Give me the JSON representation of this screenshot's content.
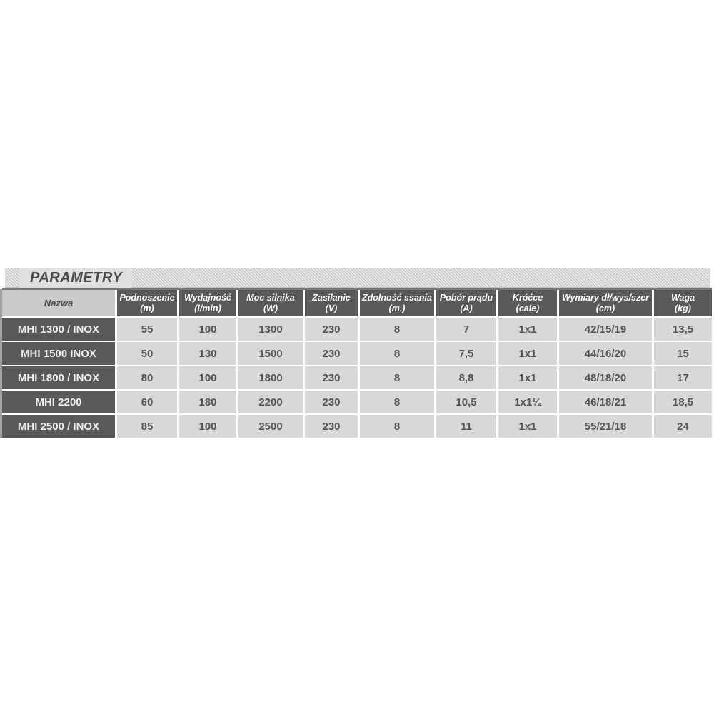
{
  "title": "PARAMETRY",
  "table": {
    "columns": [
      {
        "label": "Nazwa",
        "unit": ""
      },
      {
        "label": "Podnoszenie",
        "unit": "(m)"
      },
      {
        "label": "Wydajność",
        "unit": "(l/min)"
      },
      {
        "label": "Moc silnika",
        "unit": "(W)"
      },
      {
        "label": "Zasilanie",
        "unit": "(V)"
      },
      {
        "label": "Zdolność ssania",
        "unit": "(m.)"
      },
      {
        "label": "Pobór prądu",
        "unit": "(A)"
      },
      {
        "label": "Króćce",
        "unit": "(cale)"
      },
      {
        "label": "Wymiary dł/wys/szer",
        "unit": "(cm)"
      },
      {
        "label": "Waga",
        "unit": "(kg)"
      }
    ],
    "rows": [
      {
        "name": "MHI 1300 / INOX",
        "values": [
          "55",
          "100",
          "1300",
          "230",
          "8",
          "7",
          "1x1",
          "42/15/19",
          "13,5"
        ]
      },
      {
        "name": "MHI 1500 INOX",
        "values": [
          "50",
          "130",
          "1500",
          "230",
          "8",
          "7,5",
          "1x1",
          "44/16/20",
          "15"
        ]
      },
      {
        "name": "MHI 1800 / INOX",
        "values": [
          "80",
          "100",
          "1800",
          "230",
          "8",
          "8,8",
          "1x1",
          "48/18/20",
          "17"
        ]
      },
      {
        "name": "MHI 2200",
        "values": [
          "60",
          "180",
          "2200",
          "230",
          "8",
          "10,5",
          "1x1¼",
          "46/18/21",
          "18,5"
        ]
      },
      {
        "name": "MHI 2500 / INOX",
        "values": [
          "85",
          "100",
          "2500",
          "230",
          "8",
          "11",
          "1x1",
          "55/21/18",
          "24"
        ]
      }
    ]
  },
  "colors": {
    "header_cell_bg": "#59595b",
    "row_name_cell_bg": "#59595b",
    "data_cell_bg": "#d8d8d8",
    "nazwa_header_bg": "#c9c9c9",
    "data_text": "#555555",
    "header_text": "#ffffff",
    "title_text": "#4a4a4a",
    "hatch_line": "#c6c6c6",
    "bar_bg": "#e4e4e4"
  },
  "chart_data": {
    "type": "table",
    "title": "PARAMETRY",
    "columns": [
      "Nazwa",
      "Podnoszenie (m)",
      "Wydajność (l/min)",
      "Moc silnika (W)",
      "Zasilanie (V)",
      "Zdolność ssania (m.)",
      "Pobór prądu (A)",
      "Króćce (cale)",
      "Wymiary dł/wys/szer (cm)",
      "Waga (kg)"
    ],
    "rows": [
      [
        "MHI 1300 / INOX",
        "55",
        "100",
        "1300",
        "230",
        "8",
        "7",
        "1x1",
        "42/15/19",
        "13,5"
      ],
      [
        "MHI 1500 INOX",
        "50",
        "130",
        "1500",
        "230",
        "8",
        "7,5",
        "1x1",
        "44/16/20",
        "15"
      ],
      [
        "MHI 1800 / INOX",
        "80",
        "100",
        "1800",
        "230",
        "8",
        "8,8",
        "1x1",
        "48/18/20",
        "17"
      ],
      [
        "MHI 2200",
        "60",
        "180",
        "2200",
        "230",
        "8",
        "10,5",
        "1x1¼",
        "46/18/21",
        "18,5"
      ],
      [
        "MHI 2500 / INOX",
        "85",
        "100",
        "2500",
        "230",
        "8",
        "11",
        "1x1",
        "55/21/18",
        "24"
      ]
    ]
  }
}
